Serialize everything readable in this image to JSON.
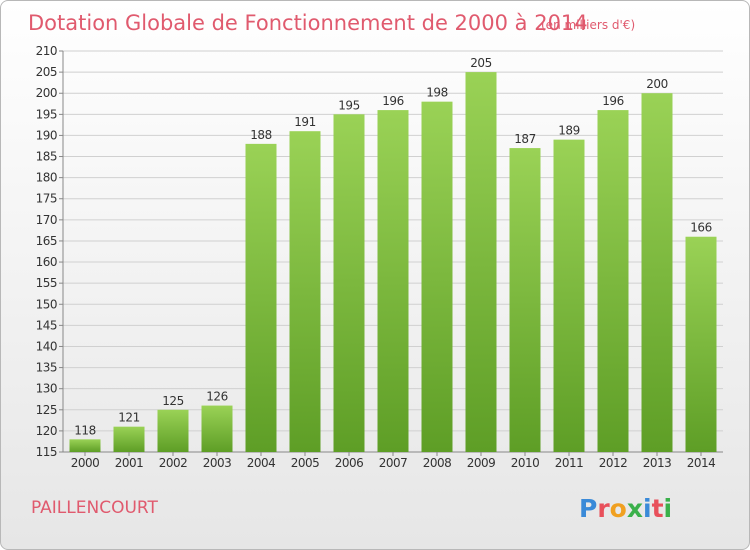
{
  "header": {
    "title": "Dotation Globale de Fonctionnement de 2000 à 2014",
    "unit": "(en milliers d'€)"
  },
  "commune": "PAILLENCOURT",
  "logo": {
    "letters": [
      "P",
      "r",
      "o",
      "x",
      "i",
      "t",
      "i"
    ],
    "colors": [
      "#3a8ad8",
      "#e8505b",
      "#f0a020",
      "#3ab04a",
      "#3a8ad8",
      "#e8505b",
      "#3ab04a"
    ]
  },
  "chart_data": {
    "type": "bar",
    "categories": [
      "2000",
      "2001",
      "2002",
      "2003",
      "2004",
      "2005",
      "2006",
      "2007",
      "2008",
      "2009",
      "2010",
      "2011",
      "2012",
      "2013",
      "2014"
    ],
    "values": [
      118,
      121,
      125,
      126,
      188,
      191,
      195,
      196,
      198,
      205,
      187,
      189,
      196,
      200,
      166
    ],
    "title": "Dotation Globale de Fonctionnement de 2000 à 2014",
    "xlabel": "",
    "ylabel": "",
    "ylim": [
      115,
      210
    ],
    "ytick_step": 5,
    "grid": true,
    "bar_color": "#7cc43a",
    "bar_color_dark": "#5a9a24"
  }
}
